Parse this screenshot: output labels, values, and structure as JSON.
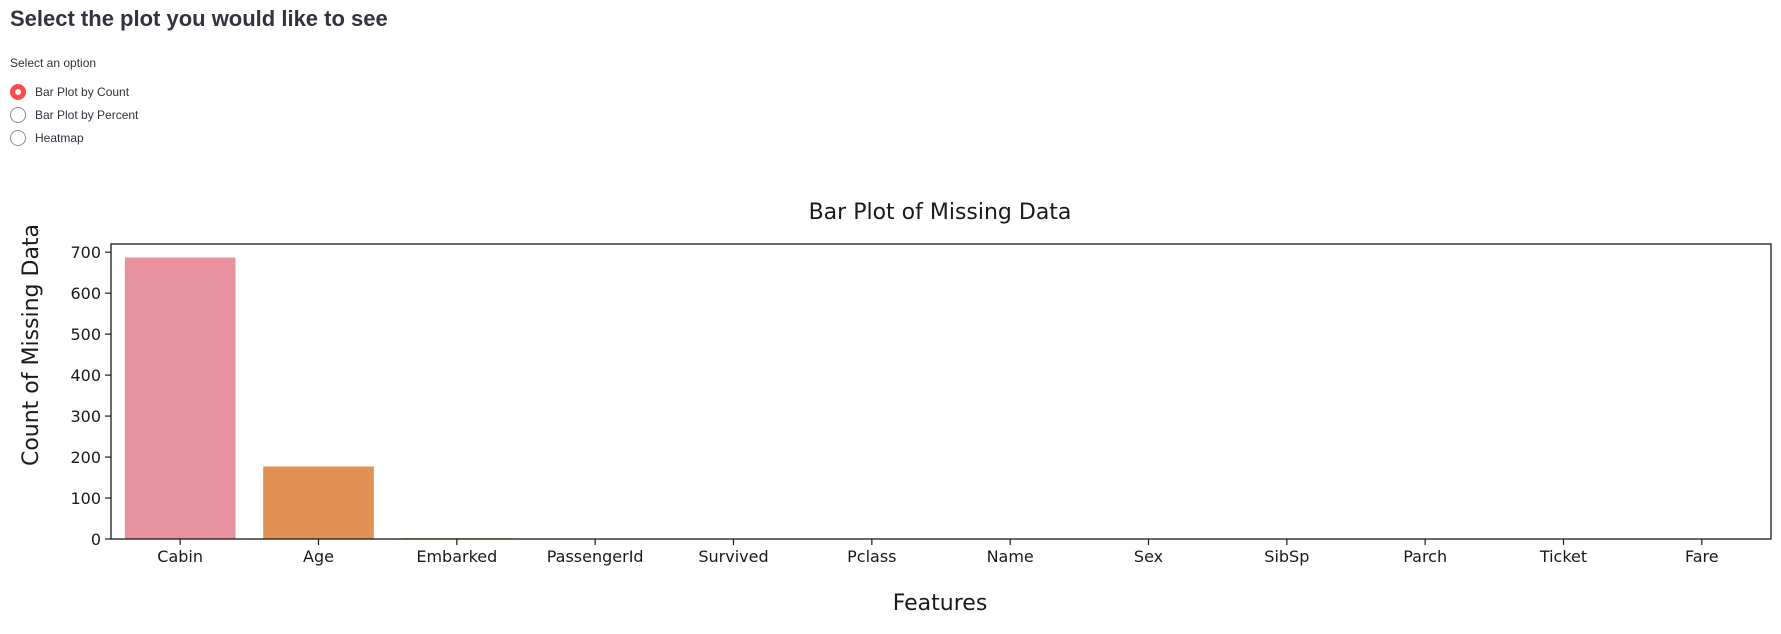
{
  "page": {
    "title": "Select the plot you would like to see"
  },
  "radio": {
    "label": "Select an option",
    "options": [
      {
        "label": "Bar Plot by Count",
        "checked": true
      },
      {
        "label": "Bar Plot by Percent",
        "checked": false
      },
      {
        "label": "Heatmap",
        "checked": false
      }
    ]
  },
  "colors": {
    "accent": "#ff4b4b"
  },
  "chart_data": {
    "type": "bar",
    "title": "Bar Plot of Missing Data",
    "xlabel": "Features",
    "ylabel": "Count of Missing Data",
    "categories": [
      "Cabin",
      "Age",
      "Embarked",
      "PassengerId",
      "Survived",
      "Pclass",
      "Name",
      "Sex",
      "SibSp",
      "Parch",
      "Ticket",
      "Fare"
    ],
    "values": [
      687,
      177,
      2,
      0,
      0,
      0,
      0,
      0,
      0,
      0,
      0,
      0
    ],
    "colors": [
      "#e8929f",
      "#e19153",
      "#c39b4c",
      "#a5a74d",
      "#7fb24d",
      "#4fb75d",
      "#52b493",
      "#53b1aa",
      "#56aebf",
      "#5ba5d9",
      "#9f98e6",
      "#db8be1"
    ],
    "ylim": [
      0,
      720
    ],
    "yticks": [
      0,
      100,
      200,
      300,
      400,
      500,
      600,
      700
    ],
    "grid": false
  }
}
